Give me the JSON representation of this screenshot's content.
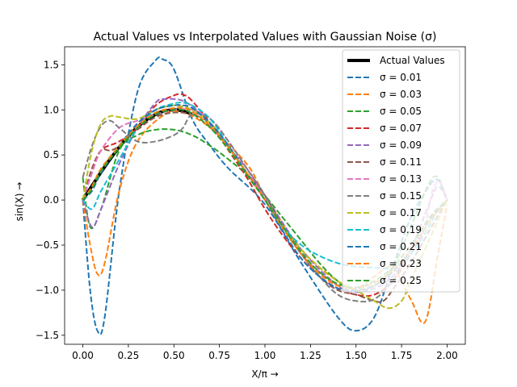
{
  "chart_data": {
    "type": "line",
    "title": "Actual Values vs Interpolated Values with Gaussian Noise (σ)",
    "xlabel": "X/π →",
    "ylabel": "sin(X) →",
    "xlim": [
      -0.1,
      2.1
    ],
    "ylim": [
      -1.6,
      1.7
    ],
    "xticks": [
      0.0,
      0.25,
      0.5,
      0.75,
      1.0,
      1.25,
      1.5,
      1.75,
      2.0
    ],
    "xtick_labels": [
      "0.00",
      "0.25",
      "0.50",
      "0.75",
      "1.00",
      "1.25",
      "1.50",
      "1.75",
      "2.00"
    ],
    "yticks": [
      -1.5,
      -1.0,
      -0.5,
      0.0,
      0.5,
      1.0,
      1.5
    ],
    "ytick_labels": [
      "−1.5",
      "−1.0",
      "−0.5",
      "0.0",
      "0.5",
      "1.0",
      "1.5"
    ],
    "grid": false,
    "legend_position": "top-right",
    "actual": {
      "name": "Actual Values",
      "color": "#000000",
      "x": [
        0.0,
        0.05,
        0.1,
        0.15,
        0.2,
        0.25,
        0.3,
        0.35,
        0.4,
        0.45,
        0.5,
        0.55,
        0.6
      ],
      "y": [
        0.0,
        0.156,
        0.309,
        0.454,
        0.588,
        0.707,
        0.809,
        0.891,
        0.951,
        0.988,
        1.0,
        0.988,
        0.951
      ]
    },
    "series": [
      {
        "name": "σ = 0.01",
        "color": "#1f77b4",
        "x": [
          0.0,
          0.04,
          0.08,
          0.12,
          0.2,
          0.3,
          0.4,
          0.44,
          0.5,
          0.6,
          0.7,
          0.8,
          1.0,
          1.2,
          1.4,
          1.5,
          1.6,
          1.7,
          1.8,
          1.9,
          1.95,
          2.0
        ],
        "y": [
          0.0,
          -1.0,
          -1.45,
          -1.3,
          0.1,
          1.2,
          1.55,
          1.56,
          1.45,
          0.9,
          0.6,
          0.35,
          -0.05,
          -0.7,
          -1.3,
          -1.45,
          -1.3,
          -0.75,
          -0.2,
          0.15,
          0.22,
          0.0
        ]
      },
      {
        "name": "σ = 0.03",
        "color": "#ff7f0e",
        "x": [
          0.0,
          0.04,
          0.08,
          0.12,
          0.2,
          0.3,
          0.45,
          0.55,
          0.7,
          0.9,
          1.0,
          1.2,
          1.4,
          1.5,
          1.6,
          1.7,
          1.8,
          1.88,
          1.95,
          2.0
        ],
        "y": [
          0.0,
          -0.5,
          -0.82,
          -0.7,
          0.1,
          0.65,
          0.95,
          0.97,
          0.8,
          0.4,
          0.05,
          -0.55,
          -0.9,
          -0.98,
          -0.85,
          -0.75,
          -1.1,
          -1.35,
          -0.6,
          -0.05
        ]
      },
      {
        "name": "σ = 0.05",
        "color": "#2ca02c",
        "x": [
          0.0,
          0.04,
          0.1,
          0.2,
          0.3,
          0.4,
          0.5,
          0.6,
          0.7,
          0.8,
          0.9,
          1.0,
          1.1,
          1.2,
          1.3,
          1.4,
          1.5,
          1.6,
          1.7,
          1.8,
          1.9,
          1.95,
          2.0
        ],
        "y": [
          0.25,
          -0.3,
          -0.1,
          0.55,
          0.72,
          0.78,
          0.78,
          0.72,
          0.6,
          0.45,
          0.28,
          0.05,
          -0.2,
          -0.45,
          -0.7,
          -0.9,
          -1.0,
          -0.95,
          -0.75,
          -0.3,
          0.18,
          0.25,
          0.0
        ]
      },
      {
        "name": "σ = 0.07",
        "color": "#d62728",
        "x": [
          0.0,
          0.05,
          0.1,
          0.2,
          0.3,
          0.4,
          0.5,
          0.55,
          0.6,
          0.7,
          0.8,
          0.9,
          1.0,
          1.1,
          1.2,
          1.3,
          1.4,
          1.5,
          1.6,
          1.7,
          1.8,
          1.9,
          2.0
        ],
        "y": [
          0.0,
          0.3,
          0.55,
          0.65,
          0.8,
          1.05,
          1.16,
          1.17,
          1.1,
          0.85,
          0.55,
          0.25,
          -0.1,
          -0.4,
          -0.65,
          -0.85,
          -0.98,
          -1.05,
          -1.05,
          -0.9,
          -0.6,
          -0.25,
          0.0
        ]
      },
      {
        "name": "σ = 0.09",
        "color": "#9467bd",
        "x": [
          0.0,
          0.05,
          0.1,
          0.2,
          0.3,
          0.4,
          0.45,
          0.55,
          0.65,
          0.75,
          0.9,
          1.0,
          1.2,
          1.4,
          1.5,
          1.6,
          1.7,
          1.8,
          1.9,
          1.95,
          2.0
        ],
        "y": [
          0.0,
          -0.3,
          -0.1,
          0.4,
          0.8,
          1.08,
          1.12,
          1.1,
          0.95,
          0.7,
          0.35,
          0.05,
          -0.55,
          -0.95,
          -1.02,
          -0.98,
          -0.85,
          -0.55,
          -0.05,
          0.15,
          0.0
        ]
      },
      {
        "name": "σ = 0.11",
        "color": "#8c564b",
        "x": [
          0.0,
          0.05,
          0.1,
          0.15,
          0.2,
          0.3,
          0.4,
          0.5,
          0.6,
          0.7,
          0.8,
          0.9,
          1.0,
          1.1,
          1.2,
          1.3,
          1.4,
          1.5,
          1.6,
          1.65,
          1.7,
          1.8,
          1.9,
          2.0
        ],
        "y": [
          0.0,
          0.35,
          0.55,
          0.55,
          0.6,
          0.78,
          0.92,
          0.97,
          0.95,
          0.85,
          0.6,
          0.3,
          0.05,
          -0.3,
          -0.6,
          -0.85,
          -1.0,
          -1.05,
          -1.12,
          -1.12,
          -1.0,
          -0.7,
          -0.35,
          0.0
        ]
      },
      {
        "name": "σ = 0.13",
        "color": "#e377c2",
        "x": [
          0.0,
          0.05,
          0.1,
          0.2,
          0.3,
          0.4,
          0.5,
          0.6,
          0.7,
          0.8,
          0.9,
          1.0,
          1.1,
          1.2,
          1.3,
          1.4,
          1.5,
          1.6,
          1.7,
          1.8,
          1.87,
          1.92,
          1.96,
          2.0
        ],
        "y": [
          0.0,
          0.3,
          0.55,
          0.8,
          0.88,
          0.95,
          1.0,
          1.0,
          0.9,
          0.65,
          0.35,
          0.02,
          -0.3,
          -0.6,
          -0.8,
          -0.95,
          -1.0,
          -0.95,
          -0.8,
          -0.6,
          -0.35,
          0.1,
          0.2,
          0.0
        ]
      },
      {
        "name": "σ = 0.15",
        "color": "#7f7f7f",
        "x": [
          0.0,
          0.05,
          0.1,
          0.15,
          0.2,
          0.3,
          0.4,
          0.5,
          0.55,
          0.6,
          0.7,
          0.8,
          0.9,
          1.0,
          1.1,
          1.2,
          1.3,
          1.4,
          1.5,
          1.6,
          1.7,
          1.8,
          1.9,
          2.0
        ],
        "y": [
          0.25,
          0.6,
          0.82,
          0.88,
          0.8,
          0.65,
          0.65,
          0.72,
          0.8,
          0.95,
          0.9,
          0.65,
          0.35,
          0.05,
          -0.3,
          -0.6,
          -0.85,
          -1.05,
          -1.12,
          -1.1,
          -0.9,
          -0.55,
          -0.2,
          0.0
        ]
      },
      {
        "name": "σ = 0.17",
        "color": "#bcbd22",
        "x": [
          0.0,
          0.05,
          0.1,
          0.15,
          0.2,
          0.3,
          0.4,
          0.5,
          0.6,
          0.7,
          0.8,
          0.9,
          1.0,
          1.1,
          1.2,
          1.3,
          1.4,
          1.5,
          1.6,
          1.68,
          1.75,
          1.8,
          1.9,
          2.0
        ],
        "y": [
          0.0,
          0.55,
          0.85,
          0.93,
          0.92,
          0.9,
          1.0,
          1.05,
          1.0,
          0.85,
          0.6,
          0.3,
          0.0,
          -0.3,
          -0.55,
          -0.75,
          -0.9,
          -1.0,
          -1.12,
          -1.2,
          -1.12,
          -0.9,
          -0.45,
          0.0
        ]
      },
      {
        "name": "σ = 0.19",
        "color": "#17becf",
        "x": [
          0.0,
          0.05,
          0.1,
          0.2,
          0.3,
          0.4,
          0.5,
          0.55,
          0.6,
          0.7,
          0.8,
          0.9,
          1.0,
          1.1,
          1.2,
          1.3,
          1.4,
          1.5,
          1.6,
          1.7,
          1.8,
          1.9,
          1.95,
          2.0
        ],
        "y": [
          0.0,
          -0.1,
          0.1,
          0.45,
          0.8,
          1.0,
          1.07,
          1.08,
          1.05,
          0.9,
          0.6,
          0.3,
          0.0,
          -0.3,
          -0.5,
          -0.62,
          -0.7,
          -0.74,
          -0.75,
          -0.75,
          -0.6,
          -0.3,
          -0.1,
          0.0
        ]
      },
      {
        "name": "σ = 0.21",
        "color": "#1f77b4",
        "x": [
          0.0,
          0.05,
          0.1,
          0.2,
          0.3,
          0.4,
          0.5,
          0.55,
          0.6,
          0.7,
          0.8,
          0.9,
          1.0,
          1.1,
          1.2,
          1.3,
          1.4,
          1.5,
          1.6,
          1.7,
          1.8,
          1.9,
          2.0
        ],
        "y": [
          0.0,
          0.1,
          0.3,
          0.6,
          0.85,
          1.0,
          1.05,
          1.05,
          1.02,
          0.85,
          0.6,
          0.3,
          0.0,
          -0.35,
          -0.65,
          -0.85,
          -0.98,
          -1.0,
          -0.95,
          -0.8,
          -0.55,
          -0.25,
          0.0
        ]
      },
      {
        "name": "σ = 0.23",
        "color": "#ff7f0e",
        "x": [
          0.0,
          0.05,
          0.1,
          0.2,
          0.3,
          0.4,
          0.5,
          0.55,
          0.6,
          0.7,
          0.8,
          0.9,
          1.0,
          1.1,
          1.2,
          1.3,
          1.4,
          1.5,
          1.6,
          1.7,
          1.8,
          1.9,
          2.0
        ],
        "y": [
          0.0,
          0.15,
          0.35,
          0.6,
          0.82,
          0.97,
          1.02,
          1.02,
          0.98,
          0.82,
          0.58,
          0.3,
          0.0,
          -0.32,
          -0.6,
          -0.82,
          -0.95,
          -0.98,
          -0.92,
          -0.78,
          -0.55,
          -0.25,
          0.0
        ]
      },
      {
        "name": "σ = 0.25",
        "color": "#2ca02c",
        "x": [
          0.0,
          0.05,
          0.1,
          0.2,
          0.3,
          0.4,
          0.5,
          0.55,
          0.6,
          0.7,
          0.8,
          0.9,
          1.0,
          1.1,
          1.2,
          1.3,
          1.4,
          1.5,
          1.6,
          1.7,
          1.8,
          1.9,
          2.0
        ],
        "y": [
          0.0,
          0.12,
          0.32,
          0.58,
          0.8,
          0.95,
          1.0,
          1.0,
          0.96,
          0.8,
          0.56,
          0.28,
          0.0,
          -0.3,
          -0.58,
          -0.8,
          -0.93,
          -0.97,
          -0.9,
          -0.75,
          -0.5,
          -0.22,
          0.0
        ]
      }
    ]
  }
}
